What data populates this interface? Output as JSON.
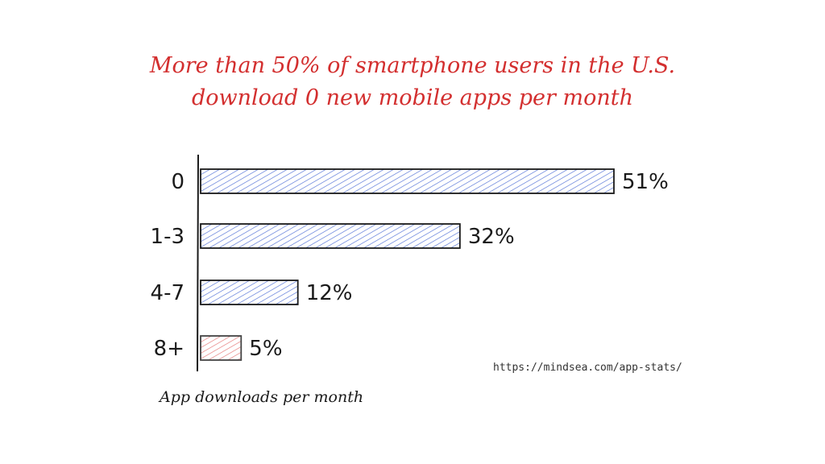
{
  "title_line1": "More than 50% of smartphone users in the U.S.",
  "title_line2": "download 0 new mobile apps per month",
  "source": "https://mindsea.com/app-stats/",
  "colors": {
    "title": "#d32f2f",
    "bar_default": "#4f6fd6",
    "bar_highlight": "#e57373",
    "stroke": "#1a1a1a"
  },
  "chart_data": {
    "type": "bar",
    "orientation": "horizontal",
    "title": "More than 50% of smartphone users in the U.S. download 0 new mobile apps per month",
    "xlabel": "App downloads per month",
    "ylabel": "",
    "categories": [
      "0",
      "1-3",
      "4-7",
      "8+"
    ],
    "values": [
      51,
      32,
      12,
      5
    ],
    "value_labels": [
      "51%",
      "32%",
      "12%",
      "5%"
    ],
    "highlight_category": "8+",
    "xlim": [
      0,
      51
    ],
    "grid": false,
    "legend": "none"
  }
}
